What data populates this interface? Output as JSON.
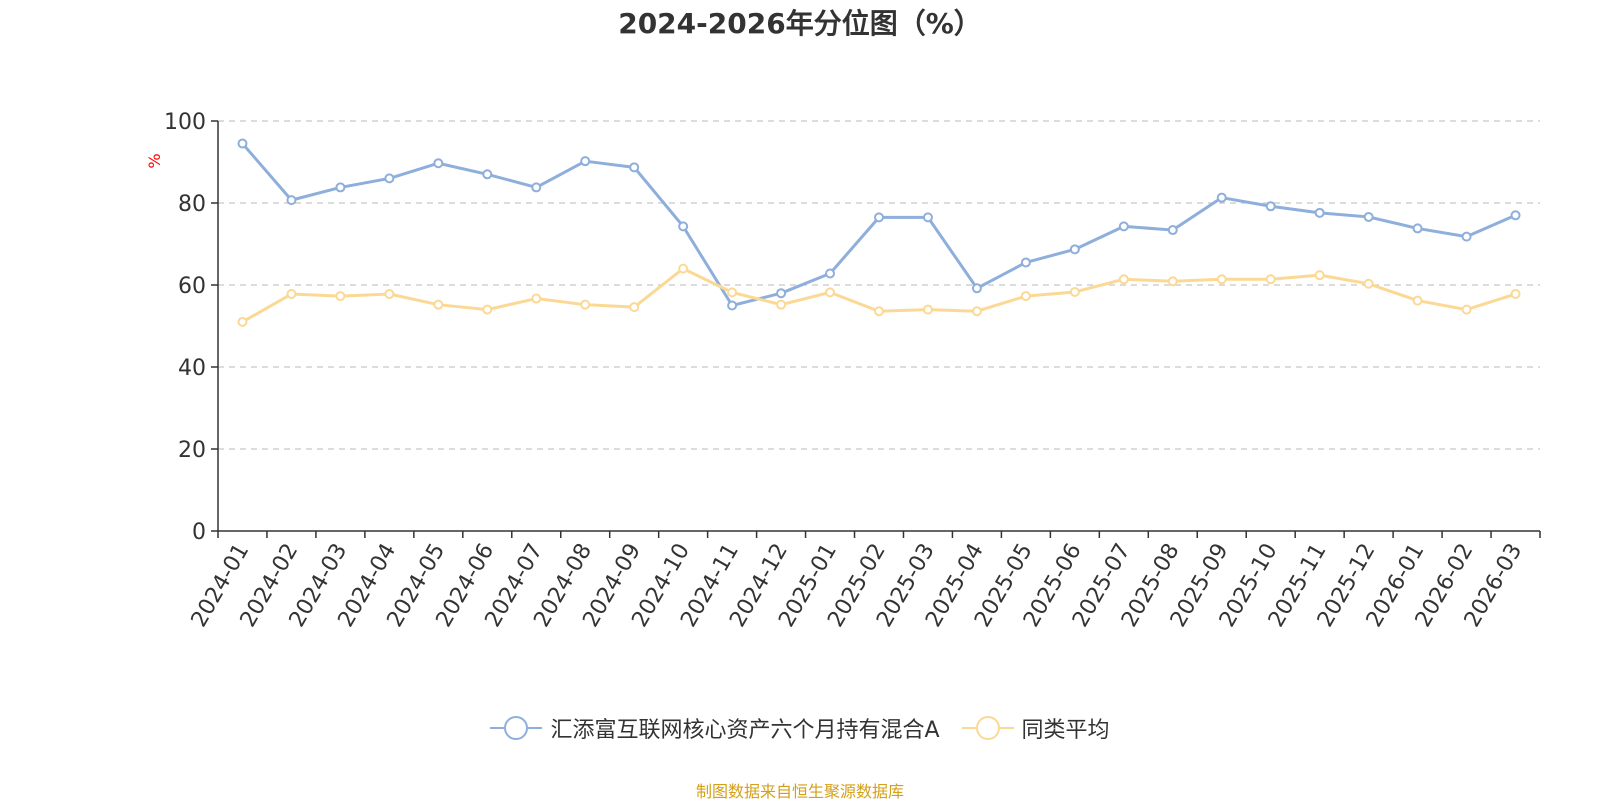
{
  "chart_data": {
    "type": "line",
    "title": "2024-2026年分位图（%）",
    "ylabel": "%",
    "xlabel": "",
    "ylim": [
      0,
      100
    ],
    "yticks": [
      0,
      20,
      40,
      60,
      80,
      100
    ],
    "grid": "horizontal-dashed",
    "legend_position": "bottom",
    "categories": [
      "2024-01",
      "2024-02",
      "2024-03",
      "2024-04",
      "2024-05",
      "2024-06",
      "2024-07",
      "2024-08",
      "2024-09",
      "2024-10",
      "2024-11",
      "2024-12",
      "2025-01",
      "2025-02",
      "2025-03",
      "2025-04",
      "2025-05",
      "2025-06",
      "2025-07",
      "2025-08",
      "2025-09",
      "2025-10",
      "2025-11",
      "2025-12",
      "2026-01",
      "2026-02",
      "2026-03"
    ],
    "series": [
      {
        "name": "汇添富互联网核心资产六个月持有混合A",
        "color": "#8eaedb",
        "values": [
          94.5,
          80.7,
          83.8,
          86.0,
          89.7,
          87.0,
          83.8,
          90.2,
          88.7,
          74.3,
          55.0,
          58.0,
          62.8,
          76.5,
          76.5,
          59.2,
          65.5,
          68.7,
          74.3,
          73.4,
          81.3,
          79.2,
          77.6,
          76.6,
          73.8,
          71.8,
          77.0
        ]
      },
      {
        "name": "同类平均",
        "color": "#fbd995",
        "values": [
          51.0,
          57.8,
          57.3,
          57.8,
          55.2,
          54.0,
          56.7,
          55.2,
          54.6,
          64.0,
          58.2,
          55.2,
          58.2,
          53.6,
          54.0,
          53.6,
          57.3,
          58.3,
          61.4,
          60.9,
          61.4,
          61.4,
          62.4,
          60.3,
          56.2,
          54.0,
          57.8
        ]
      }
    ]
  },
  "footer": {
    "source": "制图数据来自恒生聚源数据库"
  }
}
